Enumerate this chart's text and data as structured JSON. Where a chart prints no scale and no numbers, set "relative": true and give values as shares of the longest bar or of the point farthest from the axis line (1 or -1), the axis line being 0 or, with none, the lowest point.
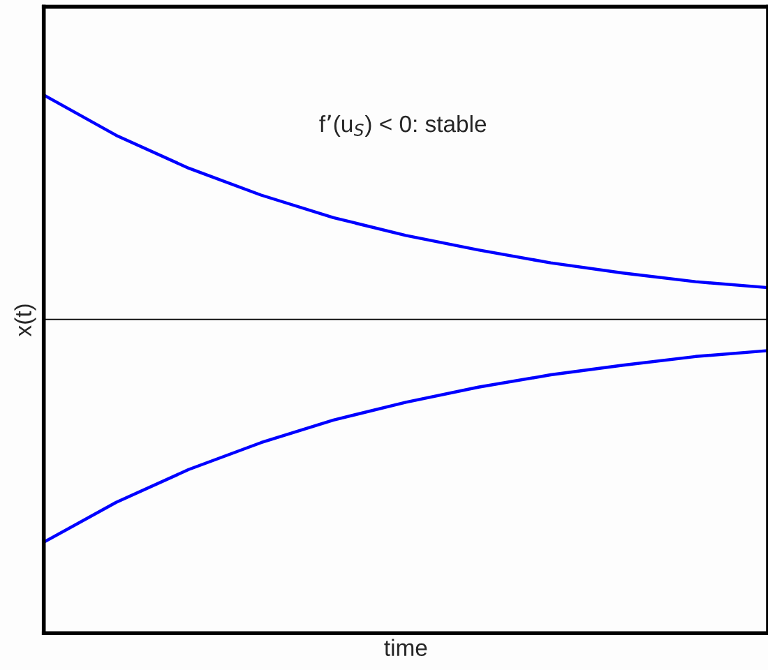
{
  "chart_data": {
    "type": "line",
    "relative": true,
    "xlabel": "time",
    "ylabel": "x(t)",
    "categories": [
      null,
      null,
      null,
      null,
      null,
      null,
      null,
      null,
      null,
      null,
      null
    ],
    "series": [
      {
        "color": "#0000ff",
        "values": [
          1.0,
          0.925,
          0.864,
          0.814,
          0.772,
          0.739,
          0.712,
          0.688,
          0.669,
          0.653,
          0.642
        ]
      },
      {
        "color": "#0000ff",
        "values": [
          0.169,
          0.243,
          0.304,
          0.354,
          0.396,
          0.429,
          0.457,
          0.48,
          0.498,
          0.514,
          0.525
        ]
      }
    ],
    "ref_lines": [
      {
        "axis": "y",
        "value": 0.583,
        "color": "#000000",
        "line_style": "solid"
      }
    ],
    "annotations": [
      "f’(u$_{S}$) < 0: stable"
    ],
    "tick_labels": false,
    "grid": false,
    "marker": "none",
    "line_style": "solid"
  }
}
